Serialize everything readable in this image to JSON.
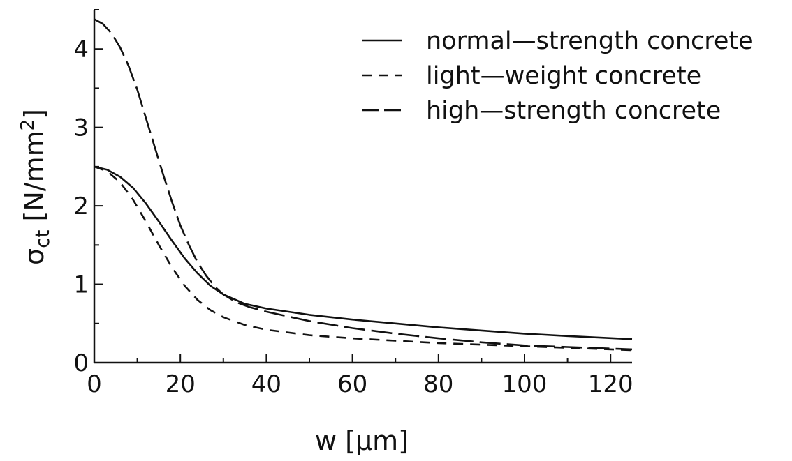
{
  "chart_data": {
    "type": "line",
    "title": "",
    "xlabel": "w [μm]",
    "ylabel_main": "σ",
    "ylabel_sub": "ct",
    "ylabel_units": " [N/mm",
    "ylabel_sup": "2",
    "ylabel_close": "]",
    "xlim": [
      0,
      125
    ],
    "ylim": [
      0,
      4.5
    ],
    "x_ticks": [
      0,
      20,
      40,
      60,
      80,
      100,
      120
    ],
    "y_ticks": [
      0,
      1,
      2,
      3,
      4
    ],
    "grid": false,
    "legend_position": "top-right",
    "series": [
      {
        "name": "normal—strength concrete",
        "style": "solid",
        "x": [
          0,
          3,
          6,
          9,
          12,
          15,
          18,
          21,
          24,
          27,
          30,
          35,
          40,
          50,
          60,
          70,
          80,
          90,
          100,
          110,
          125
        ],
        "y": [
          2.5,
          2.46,
          2.37,
          2.23,
          2.03,
          1.8,
          1.56,
          1.33,
          1.14,
          0.98,
          0.87,
          0.75,
          0.69,
          0.61,
          0.55,
          0.5,
          0.45,
          0.41,
          0.37,
          0.34,
          0.3
        ]
      },
      {
        "name": "light—weight concrete",
        "style": "dashed",
        "x": [
          0,
          3,
          6,
          9,
          12,
          15,
          18,
          21,
          24,
          27,
          30,
          35,
          40,
          50,
          60,
          70,
          80,
          90,
          100,
          110,
          125
        ],
        "y": [
          2.5,
          2.44,
          2.3,
          2.08,
          1.8,
          1.5,
          1.22,
          0.98,
          0.8,
          0.67,
          0.58,
          0.48,
          0.42,
          0.35,
          0.31,
          0.28,
          0.25,
          0.23,
          0.21,
          0.19,
          0.16
        ]
      },
      {
        "name": "high—strength concrete",
        "style": "long-dash",
        "x": [
          0,
          2,
          4,
          6,
          8,
          10,
          12,
          14,
          16,
          18,
          20,
          22,
          24,
          26,
          28,
          30,
          33,
          36,
          40,
          50,
          60,
          70,
          80,
          90,
          100,
          110,
          125
        ],
        "y": [
          4.38,
          4.32,
          4.2,
          4.02,
          3.78,
          3.48,
          3.12,
          2.76,
          2.4,
          2.06,
          1.75,
          1.5,
          1.28,
          1.11,
          0.97,
          0.87,
          0.77,
          0.71,
          0.65,
          0.53,
          0.44,
          0.37,
          0.31,
          0.26,
          0.22,
          0.2,
          0.17
        ]
      }
    ]
  }
}
